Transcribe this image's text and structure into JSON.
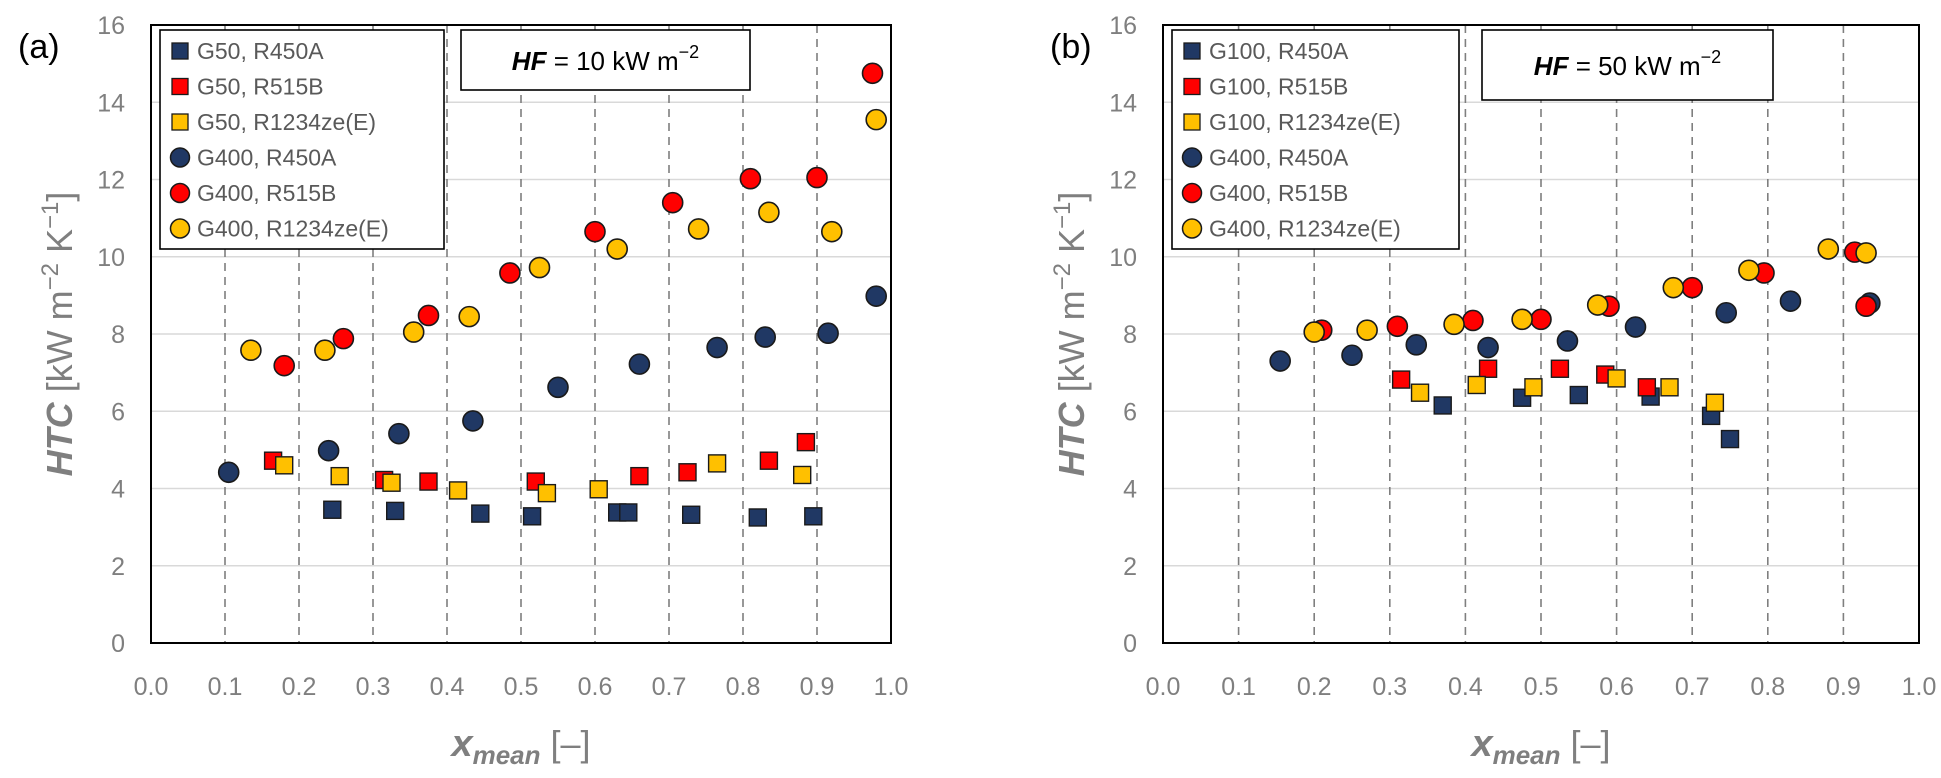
{
  "colors": {
    "R450A": "#203864",
    "R515B": "#ff0000",
    "R1234ze": "#ffc000",
    "gridline": "#d9d9d9",
    "dashline": "#7f7f7f",
    "axis_text": "#7f7f7f"
  },
  "chart_data": [
    {
      "type": "scatter",
      "panel_label": "(a)",
      "ylabel": "HTC [kW m−2 K−1]",
      "ylabel_main": "HTC",
      "ylabel_unit": " [kW m",
      "ylabel_exp1": "−2",
      "ylabel_mid": " K",
      "ylabel_exp2": "−1",
      "ylabel_close": "]",
      "xlabel": "xmean [–]",
      "xlabel_main": "x",
      "xlabel_sub": "mean",
      "xlabel_unit": " [–]",
      "xlim": [
        0,
        1
      ],
      "ylim": [
        0,
        16
      ],
      "xticks": [
        "0.0",
        "0.1",
        "0.2",
        "0.3",
        "0.4",
        "0.5",
        "0.6",
        "0.7",
        "0.8",
        "0.9",
        "1.0"
      ],
      "yticks": [
        "0",
        "2",
        "4",
        "6",
        "8",
        "10",
        "12",
        "14",
        "16"
      ],
      "annotation": {
        "bold": "HF",
        "text": " = 10 kW m",
        "sup": "−2"
      },
      "series": [
        {
          "name": "G50, R450A",
          "marker": "square",
          "color_key": "R450A",
          "points": [
            [
              0.245,
              3.45
            ],
            [
              0.33,
              3.42
            ],
            [
              0.445,
              3.35
            ],
            [
              0.515,
              3.28
            ],
            [
              0.63,
              3.38
            ],
            [
              0.645,
              3.38
            ],
            [
              0.73,
              3.32
            ],
            [
              0.82,
              3.25
            ],
            [
              0.895,
              3.28
            ]
          ]
        },
        {
          "name": "G50, R515B",
          "marker": "square",
          "color_key": "R515B",
          "points": [
            [
              0.165,
              4.72
            ],
            [
              0.315,
              4.22
            ],
            [
              0.375,
              4.18
            ],
            [
              0.52,
              4.18
            ],
            [
              0.66,
              4.32
            ],
            [
              0.725,
              4.42
            ],
            [
              0.835,
              4.72
            ],
            [
              0.885,
              5.2
            ]
          ]
        },
        {
          "name": "G50, R1234ze(E)",
          "marker": "square",
          "color_key": "R1234ze",
          "points": [
            [
              0.18,
              4.6
            ],
            [
              0.255,
              4.32
            ],
            [
              0.325,
              4.15
            ],
            [
              0.415,
              3.95
            ],
            [
              0.535,
              3.88
            ],
            [
              0.605,
              3.98
            ],
            [
              0.765,
              4.65
            ],
            [
              0.88,
              4.35
            ]
          ]
        },
        {
          "name": "G400, R450A",
          "marker": "circle",
          "color_key": "R450A",
          "points": [
            [
              0.105,
              4.42
            ],
            [
              0.24,
              4.98
            ],
            [
              0.335,
              5.42
            ],
            [
              0.435,
              5.75
            ],
            [
              0.55,
              6.62
            ],
            [
              0.66,
              7.22
            ],
            [
              0.765,
              7.65
            ],
            [
              0.83,
              7.92
            ],
            [
              0.915,
              8.02
            ],
            [
              0.98,
              8.98
            ]
          ]
        },
        {
          "name": "G400, R515B",
          "marker": "circle",
          "color_key": "R515B",
          "points": [
            [
              0.18,
              7.18
            ],
            [
              0.26,
              7.88
            ],
            [
              0.375,
              8.48
            ],
            [
              0.485,
              9.58
            ],
            [
              0.6,
              10.65
            ],
            [
              0.705,
              11.4
            ],
            [
              0.81,
              12.02
            ],
            [
              0.9,
              12.05
            ],
            [
              0.975,
              14.75
            ]
          ]
        },
        {
          "name": "G400, R1234ze(E)",
          "marker": "circle",
          "color_key": "R1234ze",
          "points": [
            [
              0.135,
              7.58
            ],
            [
              0.235,
              7.58
            ],
            [
              0.355,
              8.05
            ],
            [
              0.43,
              8.45
            ],
            [
              0.525,
              9.72
            ],
            [
              0.63,
              10.2
            ],
            [
              0.74,
              10.72
            ],
            [
              0.835,
              11.15
            ],
            [
              0.92,
              10.65
            ],
            [
              0.98,
              13.55
            ]
          ]
        }
      ]
    },
    {
      "type": "scatter",
      "panel_label": "(b)",
      "ylabel": "HTC [kW m−2 K−1]",
      "ylabel_main": "HTC",
      "ylabel_unit": " [kW m",
      "ylabel_exp1": "−2",
      "ylabel_mid": " K",
      "ylabel_exp2": "−1",
      "ylabel_close": "]",
      "xlabel": "xmean [–]",
      "xlabel_main": "x",
      "xlabel_sub": "mean",
      "xlabel_unit": " [–]",
      "xlim": [
        0,
        1
      ],
      "ylim": [
        0,
        16
      ],
      "xticks": [
        "0.0",
        "0.1",
        "0.2",
        "0.3",
        "0.4",
        "0.5",
        "0.6",
        "0.7",
        "0.8",
        "0.9",
        "1.0"
      ],
      "yticks": [
        "0",
        "2",
        "4",
        "6",
        "8",
        "10",
        "12",
        "14",
        "16"
      ],
      "annotation": {
        "bold": "HF",
        "text": " = 50 kW m",
        "sup": "−2"
      },
      "series": [
        {
          "name": "G100, R450A",
          "marker": "square",
          "color_key": "R450A",
          "points": [
            [
              0.37,
              6.15
            ],
            [
              0.475,
              6.35
            ],
            [
              0.55,
              6.42
            ],
            [
              0.645,
              6.38
            ],
            [
              0.725,
              5.88
            ],
            [
              0.75,
              5.28
            ]
          ]
        },
        {
          "name": "G100, R515B",
          "marker": "square",
          "color_key": "R515B",
          "points": [
            [
              0.315,
              6.82
            ],
            [
              0.43,
              7.1
            ],
            [
              0.525,
              7.1
            ],
            [
              0.585,
              6.95
            ],
            [
              0.64,
              6.62
            ]
          ]
        },
        {
          "name": "G100, R1234ze(E)",
          "marker": "square",
          "color_key": "R1234ze",
          "points": [
            [
              0.34,
              6.48
            ],
            [
              0.415,
              6.68
            ],
            [
              0.49,
              6.62
            ],
            [
              0.6,
              6.85
            ],
            [
              0.67,
              6.62
            ],
            [
              0.73,
              6.22
            ]
          ]
        },
        {
          "name": "G400, R450A",
          "marker": "circle",
          "color_key": "R450A",
          "points": [
            [
              0.155,
              7.3
            ],
            [
              0.25,
              7.45
            ],
            [
              0.335,
              7.72
            ],
            [
              0.43,
              7.65
            ],
            [
              0.535,
              7.82
            ],
            [
              0.625,
              8.18
            ],
            [
              0.745,
              8.55
            ],
            [
              0.83,
              8.85
            ],
            [
              0.935,
              8.8
            ]
          ]
        },
        {
          "name": "G400, R515B",
          "marker": "circle",
          "color_key": "R515B",
          "points": [
            [
              0.21,
              8.1
            ],
            [
              0.31,
              8.2
            ],
            [
              0.41,
              8.35
            ],
            [
              0.5,
              8.38
            ],
            [
              0.59,
              8.72
            ],
            [
              0.7,
              9.2
            ],
            [
              0.795,
              9.58
            ],
            [
              0.915,
              10.12
            ],
            [
              0.93,
              8.72
            ]
          ]
        },
        {
          "name": "G400, R1234ze(E)",
          "marker": "circle",
          "color_key": "R1234ze",
          "points": [
            [
              0.2,
              8.05
            ],
            [
              0.27,
              8.1
            ],
            [
              0.385,
              8.25
            ],
            [
              0.475,
              8.38
            ],
            [
              0.575,
              8.75
            ],
            [
              0.675,
              9.2
            ],
            [
              0.775,
              9.65
            ],
            [
              0.88,
              10.2
            ],
            [
              0.93,
              10.1
            ]
          ]
        }
      ]
    }
  ]
}
